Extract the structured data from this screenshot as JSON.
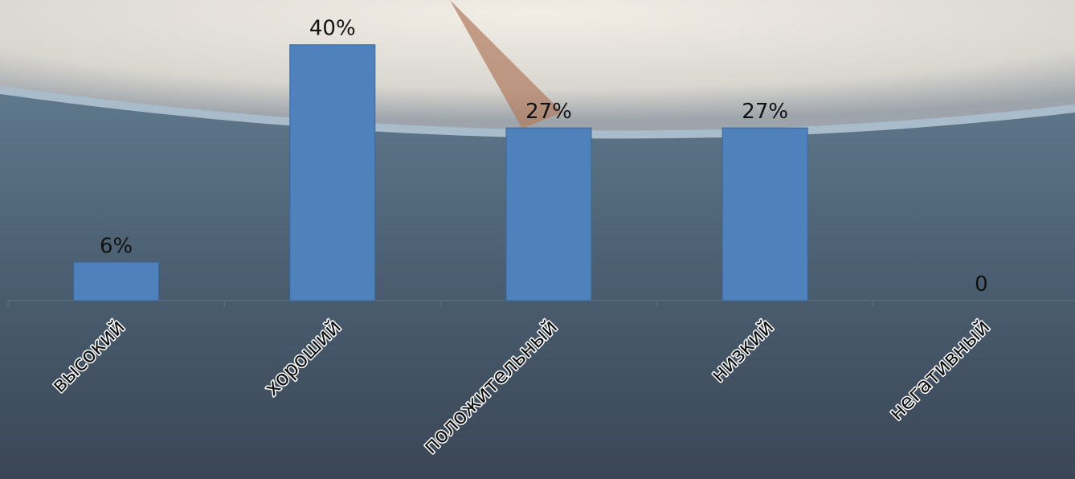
{
  "chart_data": {
    "type": "bar",
    "categories": [
      "высокий",
      "хороший",
      "положительный",
      "низкий",
      "негативный"
    ],
    "values": [
      6,
      40,
      27,
      27,
      0
    ],
    "value_labels": [
      "6%",
      "40%",
      "27%",
      "27%",
      "0"
    ],
    "color": "#4f81bd",
    "ylim": [
      0,
      47
    ]
  }
}
